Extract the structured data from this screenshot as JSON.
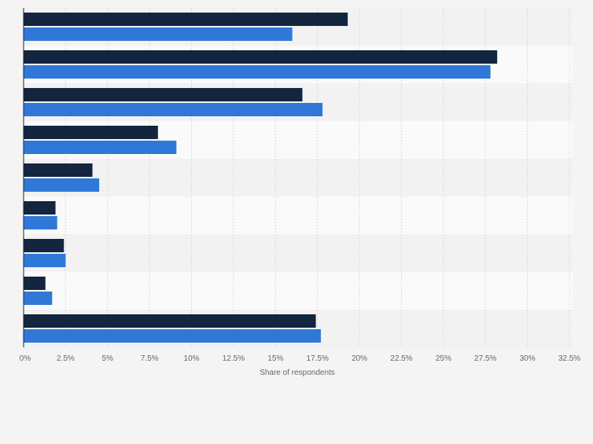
{
  "chart_data": {
    "type": "bar",
    "orientation": "horizontal",
    "categories": [
      "",
      "",
      "",
      "",
      "",
      "",
      "",
      "",
      ""
    ],
    "series": [
      {
        "color": "#13253f",
        "values": [
          19.3,
          28.2,
          16.6,
          8.0,
          4.1,
          1.9,
          2.4,
          1.3,
          17.4
        ]
      },
      {
        "color": "#2f78d8",
        "values": [
          16.0,
          27.8,
          17.8,
          9.1,
          4.5,
          2.0,
          2.5,
          1.7,
          17.7
        ]
      }
    ],
    "xlabel": "Share of respondents",
    "xlim": [
      0,
      32.5
    ],
    "xticks": [
      "0%",
      "2.5%",
      "5%",
      "7.5%",
      "10%",
      "12.5%",
      "15%",
      "17.5%",
      "20%",
      "22.5%",
      "25%",
      "27.5%",
      "30%",
      "32.5%"
    ],
    "grid": true,
    "legend": "none"
  }
}
